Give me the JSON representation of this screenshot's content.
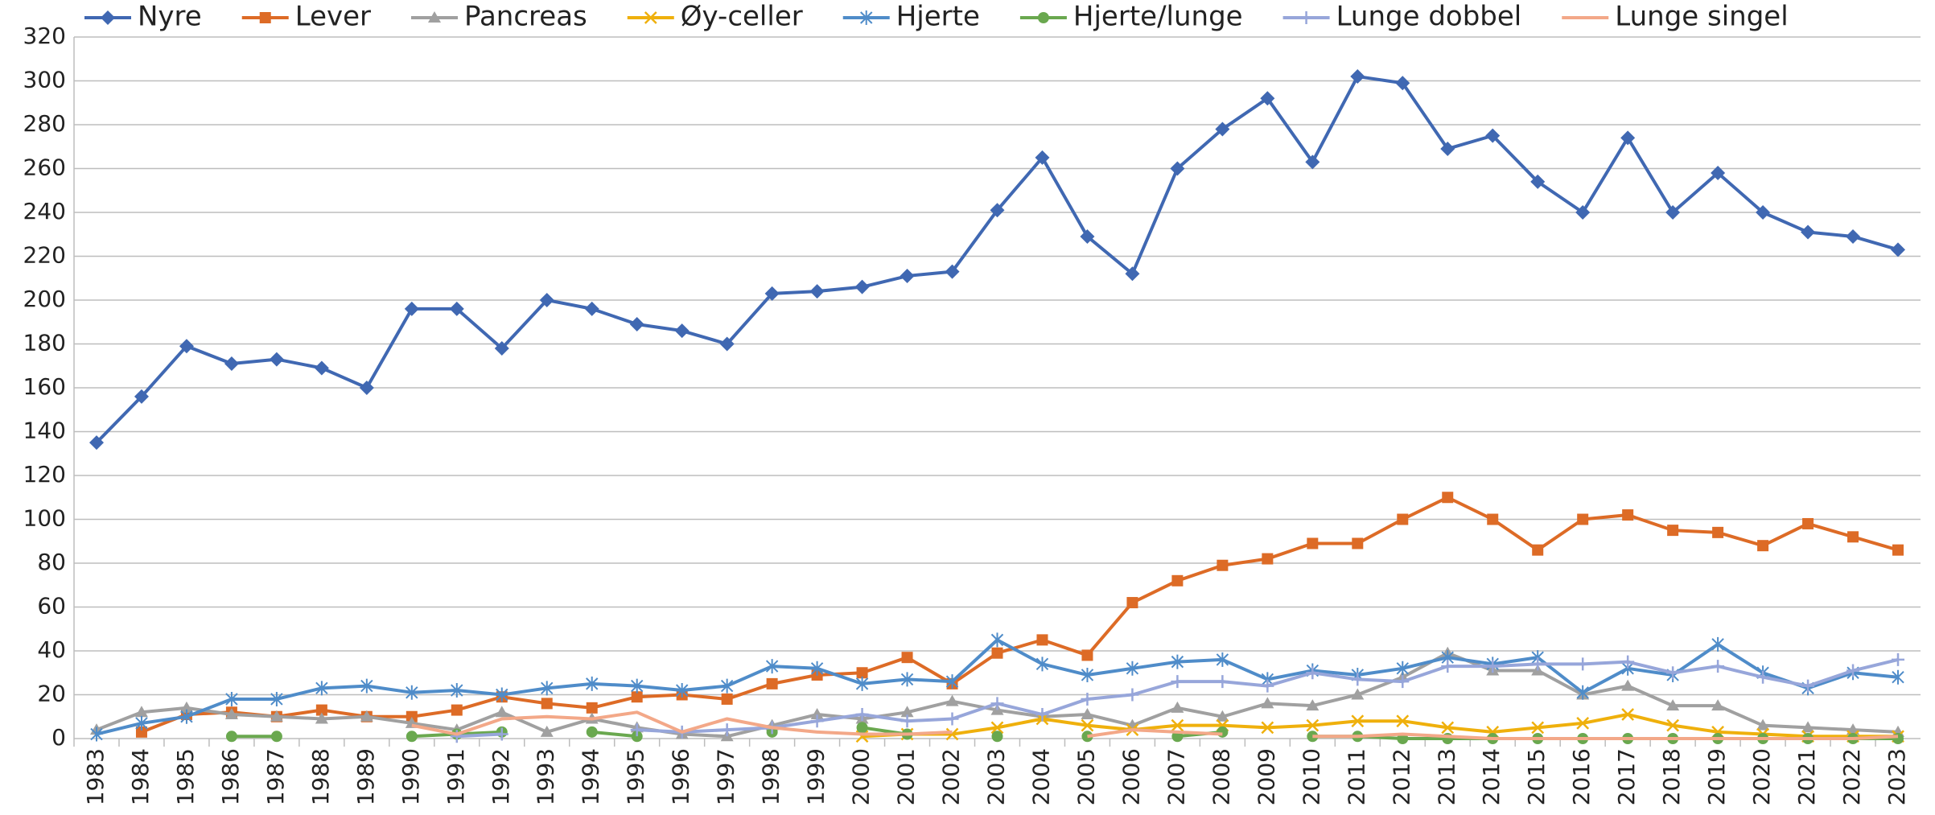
{
  "chart_data": {
    "type": "line",
    "categories": [
      "1983",
      "1984",
      "1985",
      "1986",
      "1987",
      "1988",
      "1989",
      "1990",
      "1991",
      "1992",
      "1993",
      "1994",
      "1995",
      "1996",
      "1997",
      "1998",
      "1999",
      "2000",
      "2001",
      "2002",
      "2003",
      "2004",
      "2005",
      "2006",
      "2007",
      "2008",
      "2009",
      "2010",
      "2011",
      "2012",
      "2013",
      "2014",
      "2015",
      "2016",
      "2017",
      "2018",
      "2019",
      "2020",
      "2021",
      "2022",
      "2023"
    ],
    "series": [
      {
        "name": "Nyre",
        "color": "#4068b2",
        "marker": "diamond",
        "values": [
          135,
          156,
          179,
          171,
          173,
          169,
          160,
          196,
          196,
          178,
          200,
          196,
          189,
          186,
          180,
          203,
          204,
          206,
          211,
          213,
          241,
          265,
          229,
          212,
          260,
          278,
          292,
          263,
          302,
          299,
          269,
          275,
          254,
          240,
          274,
          240,
          258,
          240,
          231,
          229,
          223
        ]
      },
      {
        "name": "Lever",
        "color": "#dd6b26",
        "marker": "square",
        "values": [
          null,
          3,
          11,
          12,
          10,
          13,
          10,
          10,
          13,
          19,
          16,
          14,
          19,
          20,
          18,
          25,
          29,
          30,
          37,
          25,
          39,
          45,
          38,
          62,
          72,
          79,
          82,
          89,
          89,
          100,
          110,
          100,
          86,
          100,
          102,
          95,
          94,
          88,
          98,
          92,
          86
        ]
      },
      {
        "name": "Pancreas",
        "color": "#a0a0a0",
        "marker": "triangle",
        "values": [
          4,
          12,
          14,
          11,
          10,
          9,
          10,
          7,
          4,
          12,
          3,
          9,
          5,
          2,
          1,
          6,
          11,
          9,
          12,
          17,
          13,
          10,
          11,
          6,
          14,
          10,
          16,
          15,
          20,
          28,
          39,
          31,
          31,
          20,
          24,
          15,
          15,
          6,
          5,
          4,
          3
        ]
      },
      {
        "name": "Øy-celler",
        "color": "#efb00c",
        "marker": "x",
        "values": [
          null,
          null,
          null,
          null,
          null,
          null,
          null,
          null,
          null,
          null,
          null,
          null,
          null,
          null,
          null,
          null,
          null,
          1,
          2,
          2,
          5,
          9,
          6,
          4,
          6,
          6,
          5,
          6,
          8,
          8,
          5,
          3,
          5,
          7,
          11,
          6,
          3,
          2,
          1,
          1,
          1
        ]
      },
      {
        "name": "Hjerte",
        "color": "#4f8cc9",
        "marker": "star",
        "values": [
          2,
          7,
          10,
          18,
          18,
          23,
          24,
          21,
          22,
          20,
          23,
          25,
          24,
          22,
          24,
          33,
          32,
          25,
          27,
          26,
          45,
          34,
          29,
          32,
          35,
          36,
          27,
          31,
          29,
          32,
          37,
          34,
          37,
          21,
          32,
          29,
          43,
          30,
          23,
          30,
          28
        ]
      },
      {
        "name": "Hjerte/lunge",
        "color": "#6aa84f",
        "marker": "circle",
        "values": [
          null,
          null,
          null,
          1,
          1,
          null,
          null,
          1,
          2,
          3,
          null,
          3,
          1,
          null,
          null,
          3,
          null,
          5,
          2,
          null,
          1,
          null,
          1,
          null,
          1,
          3,
          null,
          1,
          1,
          0,
          0,
          0,
          0,
          0,
          0,
          0,
          0,
          0,
          0,
          0,
          0
        ]
      },
      {
        "name": "Lunge dobbel",
        "color": "#97a6da",
        "marker": "plus",
        "values": [
          null,
          null,
          null,
          null,
          null,
          null,
          null,
          null,
          1,
          2,
          null,
          null,
          4,
          3,
          4,
          5,
          8,
          11,
          8,
          9,
          16,
          11,
          18,
          20,
          26,
          26,
          24,
          30,
          27,
          26,
          33,
          33,
          34,
          34,
          35,
          30,
          33,
          28,
          24,
          31,
          36
        ]
      },
      {
        "name": "Lunge singel",
        "color": "#f3a888",
        "marker": "none",
        "values": [
          null,
          null,
          null,
          null,
          null,
          null,
          null,
          6,
          2,
          9,
          10,
          9,
          12,
          3,
          9,
          5,
          3,
          2,
          2,
          3,
          null,
          null,
          1,
          4,
          3,
          2,
          null,
          1,
          1,
          2,
          1,
          0,
          0,
          0,
          0,
          0,
          0,
          0,
          0,
          0,
          1
        ]
      }
    ],
    "ylim": [
      0,
      320
    ],
    "yticks": [
      0,
      20,
      40,
      60,
      80,
      100,
      120,
      140,
      160,
      180,
      200,
      220,
      240,
      260,
      280,
      300,
      320
    ],
    "grid": true,
    "legend": "top"
  }
}
